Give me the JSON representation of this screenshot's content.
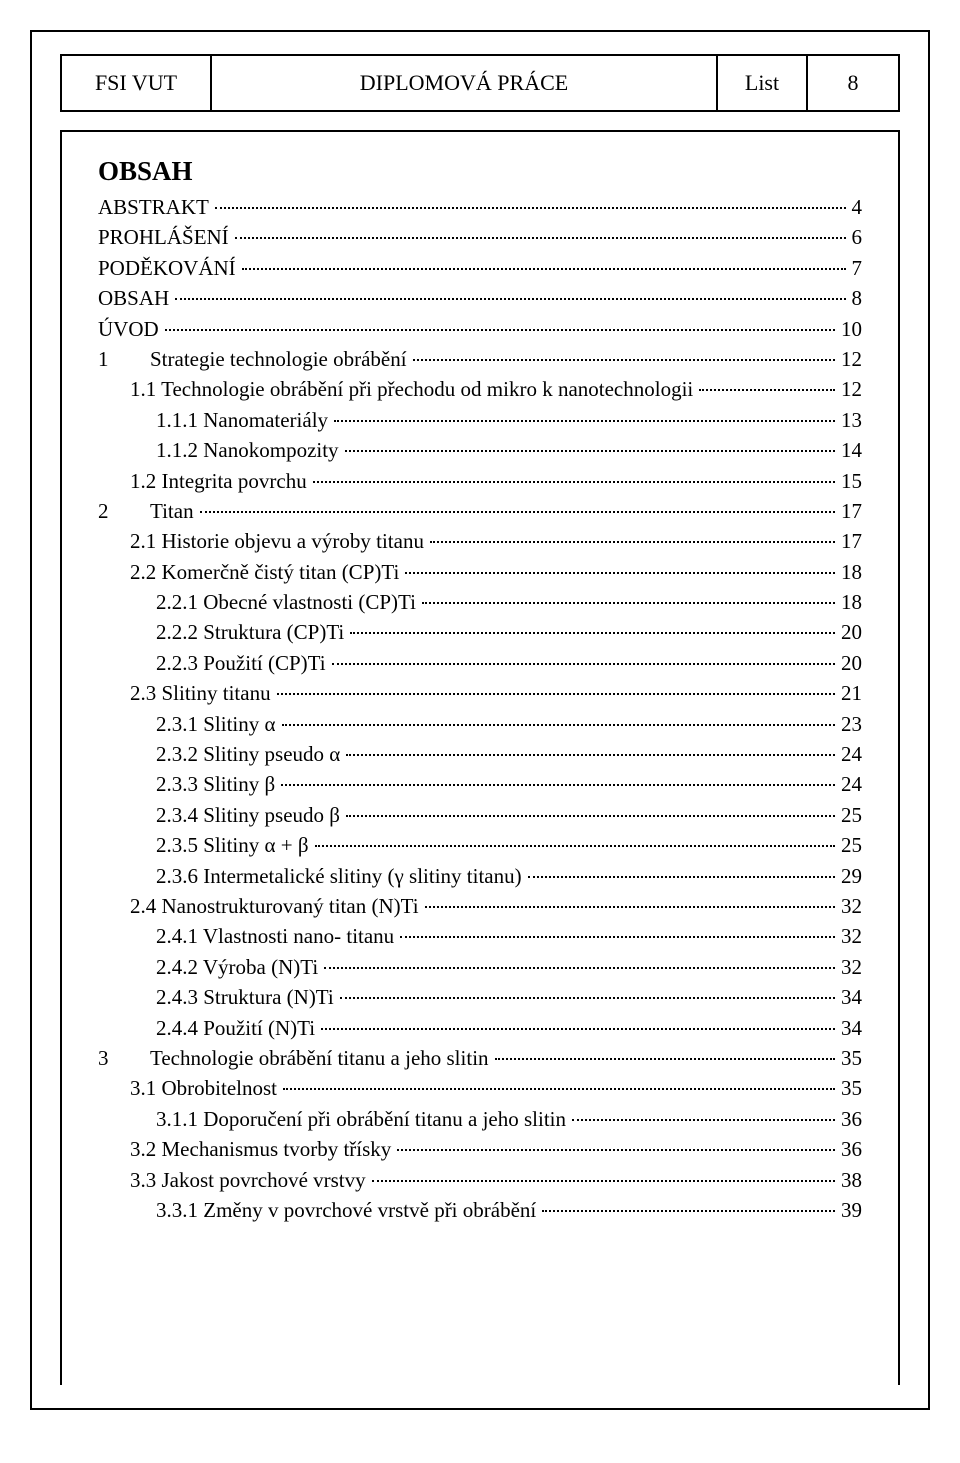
{
  "header": {
    "left": "FSI VUT",
    "center": "DIPLOMOVÁ PRÁCE",
    "list_label": "List",
    "page_num": "8"
  },
  "title": "OBSAH",
  "toc": [
    {
      "indent": 1,
      "label": "ABSTRAKT",
      "page": "4"
    },
    {
      "indent": 1,
      "label": "PROHLÁŠENÍ",
      "page": "6"
    },
    {
      "indent": 1,
      "label": "PODĚKOVÁNÍ",
      "page": "7"
    },
    {
      "indent": 1,
      "label": "OBSAH",
      "page": "8"
    },
    {
      "indent": 1,
      "label": "ÚVOD",
      "page": "10"
    },
    {
      "indent": 1,
      "chap": "1",
      "label": "Strategie technologie obrábění",
      "page": "12"
    },
    {
      "indent": 2,
      "label": "1.1 Technologie obrábění při přechodu od mikro k nanotechnologii",
      "page": "12"
    },
    {
      "indent": 3,
      "label": "1.1.1 Nanomateriály",
      "page": "13"
    },
    {
      "indent": 3,
      "label": "1.1.2 Nanokompozity",
      "page": "14"
    },
    {
      "indent": 2,
      "label": "1.2 Integrita povrchu",
      "page": "15"
    },
    {
      "indent": 1,
      "chap": "2",
      "label": "Titan",
      "page": "17"
    },
    {
      "indent": 2,
      "label": "2.1 Historie objevu a výroby titanu",
      "page": "17"
    },
    {
      "indent": 2,
      "label": "2.2 Komerčně čistý titan (CP)Ti",
      "page": "18"
    },
    {
      "indent": 3,
      "label": "2.2.1 Obecné vlastnosti (CP)Ti",
      "page": "18"
    },
    {
      "indent": 3,
      "label": "2.2.2 Struktura (CP)Ti",
      "page": "20"
    },
    {
      "indent": 3,
      "label": "2.2.3 Použití (CP)Ti",
      "page": "20"
    },
    {
      "indent": 2,
      "label": "2.3 Slitiny titanu",
      "page": "21"
    },
    {
      "indent": 3,
      "label": "2.3.1 Slitiny α",
      "page": "23"
    },
    {
      "indent": 3,
      "label": "2.3.2 Slitiny pseudo α",
      "page": "24"
    },
    {
      "indent": 3,
      "label": "2.3.3 Slitiny β",
      "page": "24"
    },
    {
      "indent": 3,
      "label": "2.3.4 Slitiny pseudo β",
      "page": "25"
    },
    {
      "indent": 3,
      "label": "2.3.5 Slitiny α + β",
      "page": "25"
    },
    {
      "indent": 3,
      "label": "2.3.6 Intermetalické slitiny (γ slitiny titanu)",
      "page": "29"
    },
    {
      "indent": 2,
      "label": "2.4 Nanostrukturovaný titan (N)Ti",
      "page": "32"
    },
    {
      "indent": 3,
      "label": "2.4.1 Vlastnosti nano- titanu",
      "page": "32"
    },
    {
      "indent": 3,
      "label": "2.4.2 Výroba (N)Ti",
      "page": "32"
    },
    {
      "indent": 3,
      "label": "2.4.3 Struktura (N)Ti",
      "page": "34"
    },
    {
      "indent": 3,
      "label": "2.4.4 Použití (N)Ti",
      "page": "34"
    },
    {
      "indent": 1,
      "chap": "3",
      "label": "Technologie obrábění titanu a jeho slitin",
      "page": "35"
    },
    {
      "indent": 2,
      "label": "3.1 Obrobitelnost",
      "page": "35"
    },
    {
      "indent": 3,
      "label": "3.1.1 Doporučení při obrábění titanu a jeho slitin",
      "page": "36"
    },
    {
      "indent": 2,
      "label": "3.2 Mechanismus tvorby třísky",
      "page": "36"
    },
    {
      "indent": 2,
      "label": "3.3 Jakost povrchové vrstvy",
      "page": "38"
    },
    {
      "indent": 3,
      "label": "3.3.1 Změny v povrchové vrstvě při obrábění",
      "page": "39"
    }
  ]
}
